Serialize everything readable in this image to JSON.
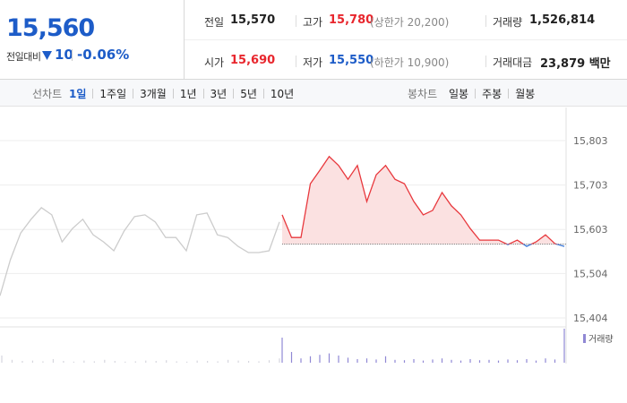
{
  "summary": {
    "price": "15,560",
    "change_label": "전일대비",
    "change": "10",
    "change_rate": "-0.06%"
  },
  "quotes": [
    {
      "label": "전일",
      "value": "15,570"
    },
    {
      "label": "고가",
      "value": "15,780",
      "note": "(상한가 20,200)",
      "color": "#e8262d"
    },
    {
      "label": "거래량",
      "value": "1,526,814"
    },
    {
      "label": "시가",
      "value": "15,690",
      "color": "#e8262d"
    },
    {
      "label": "저가",
      "value": "15,550",
      "note": "(하한가 10,900)",
      "color": "#1d5cc8"
    },
    {
      "label": "거래대금",
      "value": "23,879 백만"
    }
  ],
  "tabs": {
    "line_label": "선차트",
    "periods": [
      "1일",
      "1주일",
      "3개월",
      "1년",
      "3년",
      "5년",
      "10년"
    ],
    "selected": 0,
    "candle_label": "봉차트",
    "candles": [
      "일봉",
      "주봉",
      "월봉"
    ]
  },
  "chart_data": {
    "type": "line",
    "ylim": [
      15385,
      15860
    ],
    "yticks": [
      {
        "value": 15803,
        "label": "15,803"
      },
      {
        "value": 15703,
        "label": "15,703"
      },
      {
        "value": 15603,
        "label": "15,603"
      },
      {
        "value": 15504,
        "label": "15,504"
      },
      {
        "value": 15404,
        "label": "15,404"
      }
    ],
    "grid": true,
    "baseline": 15570,
    "series": [
      {
        "color": "#cccccc",
        "values": [
          15454,
          15535,
          15595,
          15626,
          15652,
          15636,
          15575,
          15605,
          15626,
          15591,
          15575,
          15555,
          15600,
          15632,
          15636,
          15620,
          15585,
          15585,
          15555,
          15636,
          15640,
          15591,
          15585,
          15565,
          15551,
          15551,
          15555,
          15620
        ]
      },
      {
        "color": "#e8383d",
        "below_color": "#3a78d8",
        "fill": "#fbe1e1",
        "values": [
          15636,
          15585,
          15585,
          15706,
          15736,
          15767,
          15747,
          15716,
          15747,
          15666,
          15726,
          15747,
          15716,
          15706,
          15666,
          15636,
          15646,
          15686,
          15656,
          15636,
          15605,
          15579,
          15579,
          15579,
          15569,
          15579,
          15565,
          15575,
          15591,
          15571,
          15565
        ]
      }
    ],
    "volume": {
      "name": "거래량",
      "color": "#9088d4",
      "prev_color": "#d6d6de",
      "prev_values": [
        20,
        8,
        5,
        6,
        4,
        10,
        5,
        3,
        6,
        4,
        8,
        5,
        3,
        4,
        6,
        5,
        7,
        4,
        3,
        6,
        5,
        4,
        8,
        6,
        5,
        4,
        7,
        12
      ],
      "values": [
        70,
        30,
        12,
        18,
        22,
        26,
        20,
        14,
        10,
        12,
        9,
        18,
        8,
        7,
        10,
        6,
        9,
        12,
        8,
        6,
        10,
        7,
        8,
        6,
        9,
        7,
        10,
        6,
        12,
        9,
        95
      ]
    }
  }
}
